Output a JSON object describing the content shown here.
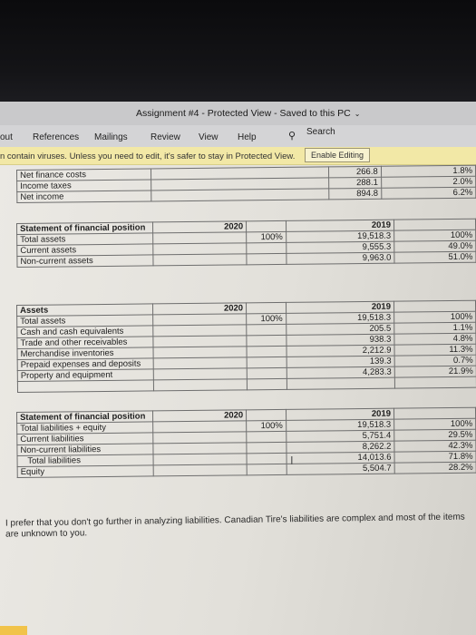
{
  "window": {
    "title": "Assignment #4  -  Protected View  -  Saved to this PC",
    "title_caret": "⌄"
  },
  "ribbon": {
    "tabs": [
      "out",
      "References",
      "Mailings",
      "Review",
      "View",
      "Help"
    ],
    "search_label": "Search",
    "search_icon": "search-icon"
  },
  "protected_view": {
    "message": "n contain viruses. Unless you need to edit, it's safer to stay in Protected View.",
    "enable_button": "Enable Editing"
  },
  "income_table": {
    "rows": [
      {
        "label": "Net finance costs",
        "c1": "",
        "c2": "266.8",
        "c3": "1.8%"
      },
      {
        "label": "Income taxes",
        "c1": "",
        "c2": "288.1",
        "c3": "2.0%"
      },
      {
        "label": "Net income",
        "c1": "",
        "c2": "894.8",
        "c3": "6.2%"
      }
    ]
  },
  "position_table": {
    "header": "Statement of financial position",
    "year_a": "2020",
    "year_b": "2019",
    "rows": [
      {
        "label": "Total assets",
        "c1": "100%",
        "c2": "19,518.3",
        "c3": "100%"
      },
      {
        "label": "Current assets",
        "c1": "",
        "c2": "9,555.3",
        "c3": "49.0%"
      },
      {
        "label": "Non-current assets",
        "c1": "",
        "c2": "9,963.0",
        "c3": "51.0%"
      }
    ]
  },
  "assets_table": {
    "header": "Assets",
    "year_a": "2020",
    "year_b": "2019",
    "rows": [
      {
        "label": "Total assets",
        "c1": "100%",
        "c2": "19,518.3",
        "c3": "100%"
      },
      {
        "label": "Cash and cash equivalents",
        "c1": "",
        "c2": "205.5",
        "c3": "1.1%"
      },
      {
        "label": "Trade and other receivables",
        "c1": "",
        "c2": "938.3",
        "c3": "4.8%"
      },
      {
        "label": "Merchandise inventories",
        "c1": "",
        "c2": "2,212.9",
        "c3": "11.3%"
      },
      {
        "label": "Prepaid expenses and deposits",
        "c1": "",
        "c2": "139.3",
        "c3": "0.7%"
      },
      {
        "label": "Property and equipment",
        "c1": "",
        "c2": "4,283.3",
        "c3": "21.9%"
      }
    ]
  },
  "liabilities_table": {
    "header": "Statement of financial position",
    "year_a": "2020",
    "year_b": "2019",
    "rows": [
      {
        "label": "Total liabilities + equity",
        "c1": "100%",
        "c2": "19,518.3",
        "c3": "100%"
      },
      {
        "label": "Current liabilities",
        "c1": "",
        "c2": "5,751.4",
        "c3": "29.5%"
      },
      {
        "label": "Non-current liabilities",
        "c1": "",
        "c2": "8,262.2",
        "c3": "42.3%"
      },
      {
        "label": "   Total liabilities",
        "c1": "",
        "c2": "14,013.6",
        "c3": "71.8%"
      },
      {
        "label": "Equity",
        "c1": "",
        "c2": "5,504.7",
        "c3": "28.2%"
      }
    ]
  },
  "comment": "I prefer that you don't go further in analyzing liabilities. Canadian Tire's liabilities are complex and most of the items are unknown to you.",
  "cursor_glyph": "I"
}
